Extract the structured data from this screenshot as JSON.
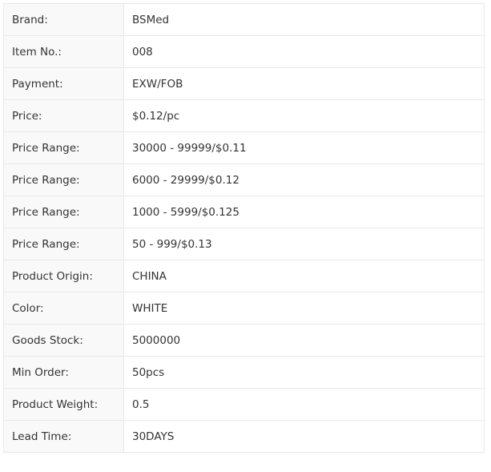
{
  "specs": [
    {
      "label": "Brand:",
      "value": "BSMed"
    },
    {
      "label": "Item No.:",
      "value": "008"
    },
    {
      "label": "Payment:",
      "value": "EXW/FOB"
    },
    {
      "label": "Price:",
      "value": "$0.12/pc"
    },
    {
      "label": "Price Range:",
      "value": "30000 - 99999/$0.11"
    },
    {
      "label": "Price Range:",
      "value": "6000 - 29999/$0.12"
    },
    {
      "label": "Price Range:",
      "value": "1000 - 5999/$0.125"
    },
    {
      "label": "Price Range:",
      "value": "50 - 999/$0.13"
    },
    {
      "label": "Product Origin:",
      "value": "CHINA"
    },
    {
      "label": "Color:",
      "value": "WHITE"
    },
    {
      "label": "Goods Stock:",
      "value": "5000000"
    },
    {
      "label": "Min Order:",
      "value": "50pcs"
    },
    {
      "label": "Product Weight:",
      "value": "0.5"
    },
    {
      "label": "Lead Time:",
      "value": "30DAYS"
    }
  ]
}
